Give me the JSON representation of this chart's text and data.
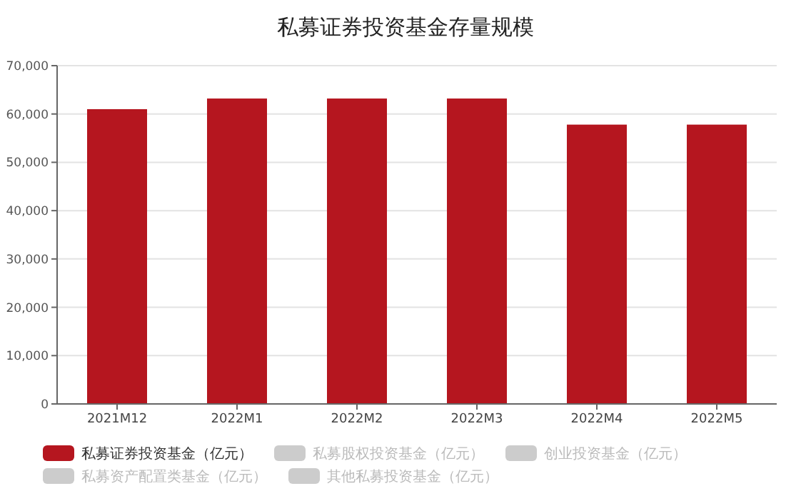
{
  "chart_data": {
    "type": "bar",
    "title": "私募证券投资基金存量规模",
    "categories": [
      "2021M12",
      "2022M1",
      "2022M2",
      "2022M3",
      "2022M4",
      "2022M5"
    ],
    "series": [
      {
        "name": "私募证券投资基金（亿元）",
        "color": "#b5161f",
        "values": [
          61000,
          63200,
          63200,
          63200,
          57800,
          57800
        ]
      },
      {
        "name": "私募股权投资基金（亿元）",
        "color": "#cccccc",
        "values": [
          null,
          null,
          null,
          null,
          null,
          null
        ]
      },
      {
        "name": "创业投资基金（亿元）",
        "color": "#cccccc",
        "values": [
          null,
          null,
          null,
          null,
          null,
          null
        ]
      },
      {
        "name": "私募资产配置类基金（亿元）",
        "color": "#cccccc",
        "values": [
          null,
          null,
          null,
          null,
          null,
          null
        ]
      },
      {
        "name": "其他私募投资基金（亿元）",
        "color": "#cccccc",
        "values": [
          null,
          null,
          null,
          null,
          null,
          null
        ]
      }
    ],
    "ylim": [
      0,
      70000
    ],
    "yticks": [
      0,
      {
        "value": 10000,
        "label": "10,000"
      },
      {
        "value": 20000,
        "label": "20,000"
      },
      {
        "value": 30000,
        "label": "30,000"
      },
      {
        "value": 40000,
        "label": "40,000"
      },
      {
        "value": 50000,
        "label": "50,000"
      },
      {
        "value": 60000,
        "label": "60,000"
      },
      {
        "value": 70000,
        "label": "70,000"
      }
    ],
    "grid": "y",
    "legend": "bottom"
  }
}
